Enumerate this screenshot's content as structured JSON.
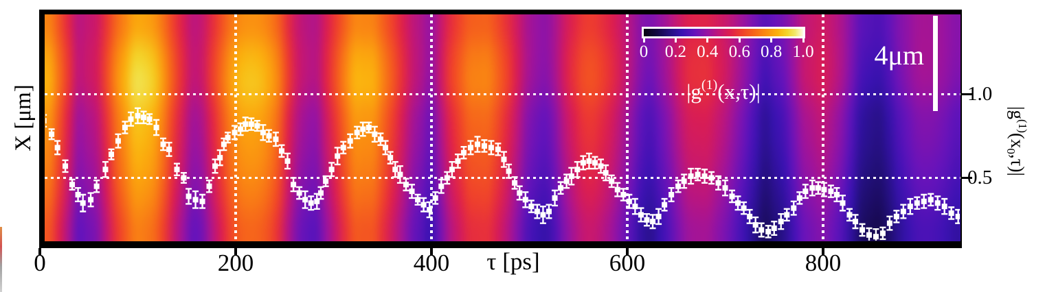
{
  "figure": {
    "left_ylabel": "X [μm]",
    "xlabel": "τ [ps]",
    "x_tick_labels": [
      "0",
      "200",
      "400",
      "600",
      "800"
    ],
    "right_axis": {
      "tick_labels": [
        "1.0",
        "0.5"
      ],
      "title_pre": "|g",
      "title_sup": "(1)",
      "title_mid": "(x",
      "title_sub": "0",
      "title_post": ",τ)|"
    },
    "colorbar": {
      "tick_labels": [
        "0",
        "0.2",
        "0.4",
        "0.6",
        "0.8",
        "1.0"
      ],
      "title_pre": "|g",
      "title_sup": "(1)",
      "title_post": "(x,τ)|"
    },
    "scalebar_label": "4μm"
  },
  "chart_data": {
    "type": "heatmap",
    "title": "",
    "xlabel": "τ [ps]",
    "ylabel_left": "X [μm]",
    "ylabel_right": "|g(1)(x0,τ)|",
    "x_range_ps": [
      0,
      940
    ],
    "x_ticks": [
      0,
      200,
      400,
      600,
      800
    ],
    "right_axis_ticks": [
      1.0,
      0.5
    ],
    "gridlines": {
      "vertical_at_ps": [
        200,
        400,
        600,
        800
      ],
      "horizontal_at_value": [
        1.0,
        0.5
      ],
      "style": "white-dotted"
    },
    "colorbar": {
      "range": [
        0,
        1.0
      ],
      "ticks": [
        0,
        0.2,
        0.4,
        0.6,
        0.8,
        1.0
      ],
      "label": "|g(1)(x,τ)|"
    },
    "scale_bar": {
      "label": "4μm",
      "orientation": "vertical"
    },
    "colormap_stops": [
      [
        0.0,
        "#070310"
      ],
      [
        0.08,
        "#120741"
      ],
      [
        0.16,
        "#23107c"
      ],
      [
        0.24,
        "#3a12b2"
      ],
      [
        0.32,
        "#6613bb"
      ],
      [
        0.4,
        "#9813a2"
      ],
      [
        0.47,
        "#c11678"
      ],
      [
        0.54,
        "#dd1f4e"
      ],
      [
        0.61,
        "#ee3d2e"
      ],
      [
        0.68,
        "#f55f1d"
      ],
      [
        0.76,
        "#fa8812"
      ],
      [
        0.84,
        "#fbb10d"
      ],
      [
        0.9,
        "#f3d52b"
      ],
      [
        0.95,
        "#f2e96b"
      ],
      [
        1.0,
        "#fdfbe8"
      ]
    ],
    "heatmap": {
      "description": "|g1(x,tau)| field; vertical interference stripes decaying with tau",
      "tau_start": 0,
      "tau_step": 20,
      "center_row_values": [
        0.88,
        0.64,
        0.39,
        0.46,
        0.72,
        0.87,
        0.8,
        0.55,
        0.37,
        0.58,
        0.78,
        0.81,
        0.73,
        0.45,
        0.36,
        0.56,
        0.77,
        0.77,
        0.6,
        0.42,
        0.32,
        0.55,
        0.68,
        0.68,
        0.53,
        0.34,
        0.3,
        0.49,
        0.6,
        0.53,
        0.4,
        0.25,
        0.35,
        0.5,
        0.52,
        0.44,
        0.32,
        0.19,
        0.26,
        0.41,
        0.46,
        0.36,
        0.19,
        0.17,
        0.29,
        0.36,
        0.34,
        0.28
      ],
      "row_offsets": [
        0.14,
        0.09,
        0.05,
        0.01,
        0.0,
        -0.02,
        -0.04,
        -0.06
      ],
      "row_scales": [
        0.8,
        0.95,
        1.03,
        1.02,
        1.0,
        0.99,
        0.97,
        0.94
      ]
    },
    "scatter": {
      "name": "|g(1)(x0,τ)| cut with error bars",
      "marker": "white-square",
      "points": [
        [
          0,
          0.88,
          0.045
        ],
        [
          4,
          0.84,
          0.035
        ],
        [
          12,
          0.76,
          0.03
        ],
        [
          18,
          0.68,
          0.04
        ],
        [
          26,
          0.57,
          0.035
        ],
        [
          33,
          0.46,
          0.03
        ],
        [
          39,
          0.4,
          0.04
        ],
        [
          44,
          0.35,
          0.05
        ],
        [
          52,
          0.37,
          0.04
        ],
        [
          58,
          0.45,
          0.035
        ],
        [
          67,
          0.55,
          0.045
        ],
        [
          73,
          0.64,
          0.03
        ],
        [
          80,
          0.72,
          0.04
        ],
        [
          87,
          0.8,
          0.035
        ],
        [
          93,
          0.85,
          0.04
        ],
        [
          100,
          0.87,
          0.045
        ],
        [
          106,
          0.86,
          0.035
        ],
        [
          112,
          0.85,
          0.03
        ],
        [
          119,
          0.8,
          0.045
        ],
        [
          126,
          0.7,
          0.035
        ],
        [
          132,
          0.67,
          0.04
        ],
        [
          140,
          0.55,
          0.035
        ],
        [
          147,
          0.5,
          0.03
        ],
        [
          152,
          0.39,
          0.045
        ],
        [
          159,
          0.37,
          0.05
        ],
        [
          166,
          0.36,
          0.04
        ],
        [
          173,
          0.45,
          0.035
        ],
        [
          179,
          0.57,
          0.04
        ],
        [
          184,
          0.62,
          0.045
        ],
        [
          188,
          0.7,
          0.035
        ],
        [
          192,
          0.74,
          0.03
        ],
        [
          199,
          0.77,
          0.04
        ],
        [
          205,
          0.79,
          0.035
        ],
        [
          210,
          0.82,
          0.04
        ],
        [
          216,
          0.82,
          0.035
        ],
        [
          222,
          0.81,
          0.03
        ],
        [
          228,
          0.77,
          0.045
        ],
        [
          234,
          0.75,
          0.035
        ],
        [
          241,
          0.73,
          0.04
        ],
        [
          247,
          0.66,
          0.035
        ],
        [
          253,
          0.6,
          0.045
        ],
        [
          259,
          0.46,
          0.04
        ],
        [
          265,
          0.41,
          0.035
        ],
        [
          271,
          0.37,
          0.05
        ],
        [
          277,
          0.35,
          0.04
        ],
        [
          283,
          0.36,
          0.045
        ],
        [
          287,
          0.41,
          0.035
        ],
        [
          292,
          0.48,
          0.03
        ],
        [
          298,
          0.55,
          0.04
        ],
        [
          304,
          0.63,
          0.05
        ],
        [
          310,
          0.68,
          0.035
        ],
        [
          317,
          0.72,
          0.04
        ],
        [
          324,
          0.77,
          0.035
        ],
        [
          330,
          0.79,
          0.04
        ],
        [
          336,
          0.8,
          0.03
        ],
        [
          342,
          0.76,
          0.045
        ],
        [
          348,
          0.73,
          0.035
        ],
        [
          353,
          0.68,
          0.04
        ],
        [
          358,
          0.62,
          0.035
        ],
        [
          363,
          0.55,
          0.045
        ],
        [
          368,
          0.52,
          0.05
        ],
        [
          374,
          0.46,
          0.035
        ],
        [
          380,
          0.42,
          0.04
        ],
        [
          386,
          0.37,
          0.03
        ],
        [
          392,
          0.34,
          0.04
        ],
        [
          398,
          0.31,
          0.045
        ],
        [
          404,
          0.38,
          0.035
        ],
        [
          410,
          0.45,
          0.04
        ],
        [
          416,
          0.5,
          0.035
        ],
        [
          421,
          0.55,
          0.045
        ],
        [
          427,
          0.6,
          0.04
        ],
        [
          433,
          0.65,
          0.035
        ],
        [
          440,
          0.68,
          0.04
        ],
        [
          447,
          0.7,
          0.045
        ],
        [
          454,
          0.69,
          0.035
        ],
        [
          461,
          0.68,
          0.04
        ],
        [
          468,
          0.67,
          0.035
        ],
        [
          474,
          0.61,
          0.045
        ],
        [
          479,
          0.54,
          0.04
        ],
        [
          485,
          0.47,
          0.035
        ],
        [
          490,
          0.41,
          0.04
        ],
        [
          496,
          0.37,
          0.045
        ],
        [
          502,
          0.33,
          0.035
        ],
        [
          508,
          0.3,
          0.04
        ],
        [
          514,
          0.28,
          0.05
        ],
        [
          520,
          0.3,
          0.04
        ],
        [
          526,
          0.38,
          0.045
        ],
        [
          532,
          0.44,
          0.035
        ],
        [
          538,
          0.48,
          0.04
        ],
        [
          543,
          0.51,
          0.05
        ],
        [
          549,
          0.55,
          0.045
        ],
        [
          555,
          0.59,
          0.04
        ],
        [
          561,
          0.6,
          0.045
        ],
        [
          567,
          0.59,
          0.035
        ],
        [
          573,
          0.57,
          0.04
        ],
        [
          578,
          0.53,
          0.045
        ],
        [
          584,
          0.48,
          0.035
        ],
        [
          590,
          0.43,
          0.04
        ],
        [
          596,
          0.4,
          0.035
        ],
        [
          602,
          0.36,
          0.04
        ],
        [
          608,
          0.33,
          0.045
        ],
        [
          614,
          0.28,
          0.04
        ],
        [
          620,
          0.25,
          0.035
        ],
        [
          626,
          0.24,
          0.04
        ],
        [
          632,
          0.27,
          0.045
        ],
        [
          638,
          0.34,
          0.035
        ],
        [
          645,
          0.4,
          0.04
        ],
        [
          652,
          0.45,
          0.035
        ],
        [
          658,
          0.48,
          0.04
        ],
        [
          665,
          0.51,
          0.045
        ],
        [
          672,
          0.52,
          0.035
        ],
        [
          679,
          0.51,
          0.04
        ],
        [
          686,
          0.5,
          0.035
        ],
        [
          693,
          0.47,
          0.04
        ],
        [
          700,
          0.44,
          0.045
        ],
        [
          707,
          0.39,
          0.035
        ],
        [
          713,
          0.35,
          0.04
        ],
        [
          719,
          0.32,
          0.035
        ],
        [
          725,
          0.27,
          0.04
        ],
        [
          731,
          0.22,
          0.045
        ],
        [
          737,
          0.19,
          0.04
        ],
        [
          744,
          0.18,
          0.035
        ],
        [
          750,
          0.2,
          0.04
        ],
        [
          757,
          0.24,
          0.045
        ],
        [
          763,
          0.28,
          0.035
        ],
        [
          770,
          0.32,
          0.04
        ],
        [
          776,
          0.38,
          0.035
        ],
        [
          782,
          0.42,
          0.04
        ],
        [
          789,
          0.44,
          0.045
        ],
        [
          795,
          0.44,
          0.035
        ],
        [
          801,
          0.43,
          0.04
        ],
        [
          808,
          0.42,
          0.035
        ],
        [
          814,
          0.4,
          0.04
        ],
        [
          820,
          0.35,
          0.045
        ],
        [
          827,
          0.28,
          0.035
        ],
        [
          833,
          0.24,
          0.04
        ],
        [
          840,
          0.19,
          0.035
        ],
        [
          847,
          0.16,
          0.04
        ],
        [
          854,
          0.15,
          0.045
        ],
        [
          861,
          0.17,
          0.035
        ],
        [
          868,
          0.23,
          0.04
        ],
        [
          875,
          0.27,
          0.035
        ],
        [
          882,
          0.3,
          0.04
        ],
        [
          889,
          0.33,
          0.045
        ],
        [
          896,
          0.35,
          0.035
        ],
        [
          903,
          0.36,
          0.04
        ],
        [
          910,
          0.37,
          0.035
        ],
        [
          917,
          0.35,
          0.04
        ],
        [
          924,
          0.33,
          0.045
        ],
        [
          931,
          0.29,
          0.035
        ],
        [
          938,
          0.27,
          0.04
        ]
      ]
    }
  }
}
